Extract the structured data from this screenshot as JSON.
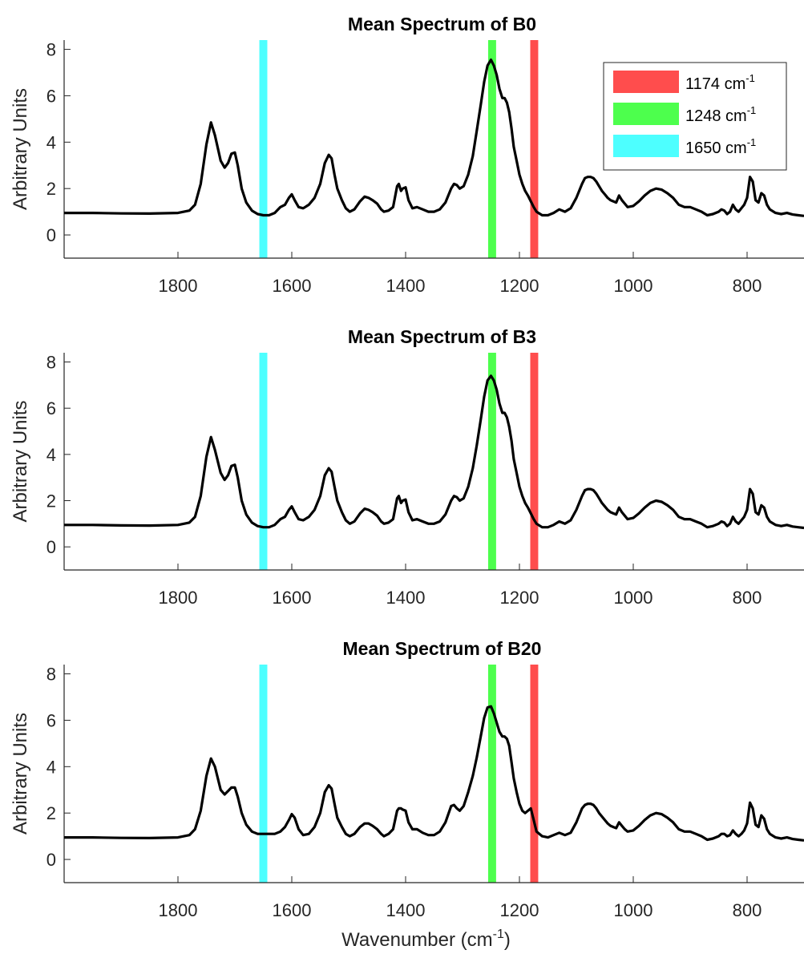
{
  "chart_data": [
    {
      "type": "line",
      "title": "Mean Spectrum of B0",
      "ylabel": "Arbitrary Units",
      "xlabel": "",
      "xlim": [
        2000,
        700
      ],
      "x_reversed": true,
      "ylim": [
        -1,
        8.4
      ],
      "xticks": [
        1800,
        1600,
        1400,
        1200,
        1000,
        800
      ],
      "yticks": [
        0,
        2,
        4,
        6,
        8
      ],
      "grid": false,
      "legend": "top-right",
      "bands": [
        {
          "label": "1174 cm",
          "sup": "-1",
          "center": 1174,
          "width": 14,
          "color": "#ff4d4d"
        },
        {
          "label": "1248 cm",
          "sup": "-1",
          "center": 1248,
          "width": 14,
          "color": "#4dff4d"
        },
        {
          "label": "1650 cm",
          "sup": "-1",
          "center": 1650,
          "width": 14,
          "color": "#4dffff"
        }
      ],
      "series": [
        {
          "color": "#000000",
          "x": [
            2000,
            1950,
            1900,
            1850,
            1800,
            1780,
            1770,
            1760,
            1750,
            1742,
            1735,
            1725,
            1718,
            1712,
            1706,
            1700,
            1695,
            1688,
            1680,
            1670,
            1660,
            1650,
            1640,
            1630,
            1620,
            1612,
            1605,
            1600,
            1595,
            1588,
            1580,
            1570,
            1560,
            1550,
            1542,
            1535,
            1530,
            1525,
            1520,
            1512,
            1505,
            1498,
            1490,
            1480,
            1472,
            1465,
            1458,
            1450,
            1443,
            1438,
            1430,
            1422,
            1415,
            1412,
            1408,
            1405,
            1400,
            1395,
            1388,
            1380,
            1370,
            1360,
            1350,
            1340,
            1330,
            1320,
            1315,
            1310,
            1305,
            1298,
            1290,
            1282,
            1275,
            1268,
            1262,
            1256,
            1250,
            1245,
            1240,
            1235,
            1230,
            1226,
            1222,
            1218,
            1214,
            1210,
            1205,
            1200,
            1195,
            1190,
            1185,
            1180,
            1175,
            1170,
            1160,
            1150,
            1140,
            1130,
            1120,
            1110,
            1100,
            1090,
            1085,
            1080,
            1075,
            1070,
            1065,
            1060,
            1055,
            1050,
            1045,
            1040,
            1035,
            1030,
            1025,
            1020,
            1015,
            1010,
            1000,
            990,
            980,
            970,
            960,
            950,
            940,
            930,
            920,
            910,
            900,
            890,
            880,
            870,
            860,
            850,
            845,
            840,
            835,
            830,
            825,
            820,
            815,
            810,
            805,
            800,
            795,
            790,
            785,
            780,
            775,
            770,
            765,
            760,
            750,
            740,
            730,
            720,
            710,
            700
          ],
          "y": [
            0.95,
            0.95,
            0.93,
            0.92,
            0.95,
            1.05,
            1.3,
            2.2,
            3.9,
            4.85,
            4.3,
            3.2,
            2.9,
            3.1,
            3.5,
            3.55,
            3.0,
            2.0,
            1.4,
            1.05,
            0.9,
            0.85,
            0.85,
            0.95,
            1.2,
            1.3,
            1.6,
            1.75,
            1.5,
            1.2,
            1.15,
            1.3,
            1.6,
            2.2,
            3.1,
            3.45,
            3.3,
            2.6,
            2.0,
            1.5,
            1.15,
            1.0,
            1.1,
            1.45,
            1.65,
            1.6,
            1.5,
            1.35,
            1.1,
            1.0,
            1.05,
            1.2,
            2.1,
            2.2,
            1.9,
            2.0,
            2.05,
            1.5,
            1.15,
            1.2,
            1.1,
            1.0,
            1.0,
            1.1,
            1.4,
            2.0,
            2.2,
            2.15,
            2.0,
            2.1,
            2.6,
            3.4,
            4.5,
            5.6,
            6.6,
            7.3,
            7.55,
            7.3,
            6.9,
            6.3,
            5.9,
            5.9,
            5.7,
            5.3,
            4.6,
            3.8,
            3.2,
            2.6,
            2.2,
            1.9,
            1.7,
            1.45,
            1.2,
            1.0,
            0.85,
            0.85,
            0.95,
            1.1,
            1.0,
            1.15,
            1.6,
            2.2,
            2.45,
            2.5,
            2.5,
            2.45,
            2.3,
            2.1,
            1.9,
            1.75,
            1.6,
            1.5,
            1.45,
            1.4,
            1.7,
            1.5,
            1.35,
            1.2,
            1.25,
            1.45,
            1.7,
            1.9,
            2.0,
            1.95,
            1.8,
            1.6,
            1.3,
            1.2,
            1.2,
            1.1,
            1.0,
            0.85,
            0.9,
            1.0,
            1.1,
            1.05,
            0.9,
            1.0,
            1.3,
            1.1,
            1.0,
            1.15,
            1.3,
            1.6,
            2.5,
            2.3,
            1.5,
            1.4,
            1.8,
            1.7,
            1.3,
            1.1,
            0.95,
            0.9,
            0.95,
            0.88,
            0.85,
            0.82
          ]
        }
      ]
    },
    {
      "type": "line",
      "title": "Mean Spectrum of B3",
      "ylabel": "Arbitrary Units",
      "xlabel": "",
      "xlim": [
        2000,
        700
      ],
      "x_reversed": true,
      "ylim": [
        -1,
        8.4
      ],
      "xticks": [
        1800,
        1600,
        1400,
        1200,
        1000,
        800
      ],
      "yticks": [
        0,
        2,
        4,
        6,
        8
      ],
      "grid": false,
      "bands": [
        {
          "center": 1174,
          "width": 14,
          "color": "#ff4d4d"
        },
        {
          "center": 1248,
          "width": 14,
          "color": "#4dff4d"
        },
        {
          "center": 1650,
          "width": 14,
          "color": "#4dffff"
        }
      ],
      "series": [
        {
          "color": "#000000",
          "x": [
            2000,
            1950,
            1900,
            1850,
            1800,
            1780,
            1770,
            1760,
            1750,
            1742,
            1735,
            1725,
            1718,
            1712,
            1706,
            1700,
            1695,
            1688,
            1680,
            1670,
            1660,
            1650,
            1640,
            1630,
            1620,
            1612,
            1605,
            1600,
            1595,
            1588,
            1580,
            1570,
            1560,
            1550,
            1542,
            1535,
            1530,
            1525,
            1520,
            1512,
            1505,
            1498,
            1490,
            1480,
            1472,
            1465,
            1458,
            1450,
            1443,
            1438,
            1430,
            1422,
            1415,
            1412,
            1408,
            1405,
            1400,
            1395,
            1388,
            1380,
            1370,
            1360,
            1350,
            1340,
            1330,
            1320,
            1315,
            1310,
            1305,
            1298,
            1290,
            1282,
            1275,
            1268,
            1262,
            1256,
            1250,
            1245,
            1240,
            1235,
            1230,
            1226,
            1222,
            1218,
            1214,
            1210,
            1205,
            1200,
            1195,
            1190,
            1185,
            1180,
            1175,
            1170,
            1160,
            1150,
            1140,
            1130,
            1120,
            1110,
            1100,
            1090,
            1085,
            1080,
            1075,
            1070,
            1065,
            1060,
            1055,
            1050,
            1045,
            1040,
            1035,
            1030,
            1025,
            1020,
            1015,
            1010,
            1000,
            990,
            980,
            970,
            960,
            950,
            940,
            930,
            920,
            910,
            900,
            890,
            880,
            870,
            860,
            850,
            845,
            840,
            835,
            830,
            825,
            820,
            815,
            810,
            805,
            800,
            795,
            790,
            785,
            780,
            775,
            770,
            765,
            760,
            750,
            740,
            730,
            720,
            710,
            700
          ],
          "y": [
            0.95,
            0.95,
            0.93,
            0.92,
            0.95,
            1.05,
            1.3,
            2.2,
            3.9,
            4.75,
            4.2,
            3.2,
            2.9,
            3.1,
            3.5,
            3.55,
            3.0,
            2.0,
            1.4,
            1.05,
            0.9,
            0.85,
            0.85,
            0.95,
            1.2,
            1.3,
            1.6,
            1.75,
            1.5,
            1.2,
            1.15,
            1.3,
            1.6,
            2.2,
            3.1,
            3.4,
            3.25,
            2.6,
            2.0,
            1.5,
            1.15,
            1.0,
            1.1,
            1.45,
            1.65,
            1.6,
            1.5,
            1.35,
            1.1,
            1.0,
            1.05,
            1.2,
            2.1,
            2.2,
            1.9,
            2.0,
            2.05,
            1.5,
            1.15,
            1.2,
            1.1,
            1.0,
            1.0,
            1.1,
            1.4,
            2.0,
            2.2,
            2.15,
            2.0,
            2.1,
            2.6,
            3.4,
            4.4,
            5.5,
            6.5,
            7.2,
            7.4,
            7.2,
            6.8,
            6.2,
            5.8,
            5.8,
            5.6,
            5.2,
            4.6,
            3.8,
            3.2,
            2.6,
            2.2,
            1.9,
            1.7,
            1.45,
            1.2,
            1.0,
            0.85,
            0.85,
            0.95,
            1.1,
            1.0,
            1.15,
            1.6,
            2.2,
            2.45,
            2.5,
            2.5,
            2.45,
            2.3,
            2.1,
            1.9,
            1.75,
            1.6,
            1.5,
            1.45,
            1.4,
            1.7,
            1.5,
            1.35,
            1.2,
            1.25,
            1.45,
            1.7,
            1.9,
            2.0,
            1.95,
            1.8,
            1.6,
            1.3,
            1.2,
            1.2,
            1.1,
            1.0,
            0.85,
            0.9,
            1.0,
            1.1,
            1.05,
            0.9,
            1.0,
            1.3,
            1.1,
            1.0,
            1.15,
            1.3,
            1.6,
            2.5,
            2.3,
            1.5,
            1.4,
            1.8,
            1.7,
            1.3,
            1.1,
            0.95,
            0.9,
            0.95,
            0.88,
            0.85,
            0.82
          ]
        }
      ]
    },
    {
      "type": "line",
      "title": "Mean Spectrum of B20",
      "ylabel": "Arbitrary Units",
      "xlabel": "Wavenumber (cm",
      "xlabel_sup": "-1",
      "xlabel_end": ")",
      "xlim": [
        2000,
        700
      ],
      "x_reversed": true,
      "ylim": [
        -1,
        8.4
      ],
      "xticks": [
        1800,
        1600,
        1400,
        1200,
        1000,
        800
      ],
      "yticks": [
        0,
        2,
        4,
        6,
        8
      ],
      "grid": false,
      "bands": [
        {
          "center": 1174,
          "width": 14,
          "color": "#ff4d4d"
        },
        {
          "center": 1248,
          "width": 14,
          "color": "#4dff4d"
        },
        {
          "center": 1650,
          "width": 14,
          "color": "#4dffff"
        }
      ],
      "series": [
        {
          "color": "#000000",
          "x": [
            2000,
            1950,
            1900,
            1850,
            1800,
            1780,
            1770,
            1760,
            1750,
            1742,
            1735,
            1725,
            1718,
            1712,
            1706,
            1700,
            1695,
            1688,
            1680,
            1670,
            1660,
            1650,
            1640,
            1630,
            1620,
            1612,
            1605,
            1600,
            1595,
            1588,
            1580,
            1570,
            1560,
            1550,
            1542,
            1535,
            1530,
            1525,
            1520,
            1512,
            1505,
            1498,
            1490,
            1480,
            1472,
            1465,
            1458,
            1450,
            1443,
            1438,
            1430,
            1422,
            1415,
            1412,
            1408,
            1405,
            1400,
            1395,
            1388,
            1380,
            1370,
            1360,
            1350,
            1340,
            1330,
            1320,
            1315,
            1310,
            1305,
            1298,
            1290,
            1282,
            1275,
            1268,
            1262,
            1256,
            1250,
            1245,
            1240,
            1235,
            1230,
            1226,
            1222,
            1218,
            1214,
            1210,
            1205,
            1200,
            1195,
            1190,
            1185,
            1180,
            1175,
            1170,
            1160,
            1150,
            1140,
            1130,
            1120,
            1110,
            1100,
            1090,
            1085,
            1080,
            1075,
            1070,
            1065,
            1060,
            1055,
            1050,
            1045,
            1040,
            1035,
            1030,
            1025,
            1020,
            1015,
            1010,
            1000,
            990,
            980,
            970,
            960,
            950,
            940,
            930,
            920,
            910,
            900,
            890,
            880,
            870,
            860,
            850,
            845,
            840,
            835,
            830,
            825,
            820,
            815,
            810,
            805,
            800,
            795,
            790,
            785,
            780,
            775,
            770,
            765,
            760,
            750,
            740,
            730,
            720,
            710,
            700
          ],
          "y": [
            0.95,
            0.95,
            0.93,
            0.92,
            0.95,
            1.05,
            1.3,
            2.1,
            3.6,
            4.35,
            4.0,
            3.0,
            2.8,
            2.95,
            3.1,
            3.1,
            2.7,
            2.0,
            1.5,
            1.2,
            1.1,
            1.1,
            1.1,
            1.1,
            1.2,
            1.4,
            1.7,
            1.95,
            1.8,
            1.3,
            1.05,
            1.1,
            1.4,
            2.0,
            2.9,
            3.2,
            3.05,
            2.4,
            1.8,
            1.4,
            1.1,
            1.0,
            1.1,
            1.4,
            1.55,
            1.55,
            1.45,
            1.3,
            1.1,
            1.0,
            1.1,
            1.3,
            2.1,
            2.2,
            2.2,
            2.15,
            2.1,
            1.6,
            1.3,
            1.3,
            1.15,
            1.05,
            1.05,
            1.2,
            1.6,
            2.3,
            2.35,
            2.2,
            2.1,
            2.3,
            2.9,
            3.6,
            4.4,
            5.3,
            6.1,
            6.55,
            6.6,
            6.3,
            5.9,
            5.5,
            5.3,
            5.3,
            5.2,
            4.9,
            4.2,
            3.5,
            2.9,
            2.4,
            2.1,
            2.0,
            2.1,
            2.2,
            1.7,
            1.2,
            1.0,
            0.95,
            1.05,
            1.15,
            1.05,
            1.15,
            1.6,
            2.2,
            2.35,
            2.4,
            2.4,
            2.35,
            2.2,
            2.0,
            1.85,
            1.7,
            1.55,
            1.45,
            1.4,
            1.35,
            1.6,
            1.45,
            1.3,
            1.2,
            1.25,
            1.45,
            1.7,
            1.9,
            2.0,
            1.95,
            1.8,
            1.6,
            1.3,
            1.2,
            1.2,
            1.1,
            1.0,
            0.85,
            0.9,
            1.0,
            1.1,
            1.1,
            1.0,
            1.05,
            1.25,
            1.1,
            1.0,
            1.1,
            1.25,
            1.55,
            2.45,
            2.2,
            1.5,
            1.4,
            1.9,
            1.75,
            1.3,
            1.1,
            0.95,
            0.9,
            0.95,
            0.88,
            0.85,
            0.82
          ]
        }
      ]
    }
  ]
}
